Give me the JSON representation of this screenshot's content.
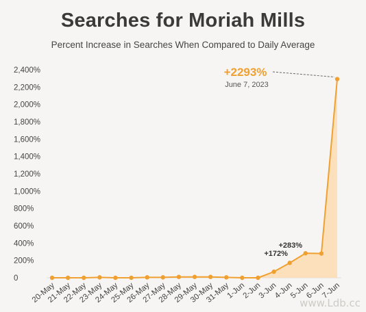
{
  "chart_data": {
    "type": "area",
    "title": "Searches for Moriah Mills",
    "subtitle": "Percent Increase in Searches When Compared to Daily Average",
    "xlabel": "",
    "ylabel": "",
    "ylim": [
      0,
      2400
    ],
    "yticks": [
      "0",
      "200%",
      "400%",
      "600%",
      "800%",
      "1,000%",
      "1,200%",
      "1,400%",
      "1,600%",
      "1,800%",
      "2,000%",
      "2,200%",
      "2,400%"
    ],
    "ytick_values": [
      0,
      200,
      400,
      600,
      800,
      1000,
      1200,
      1400,
      1600,
      1800,
      2000,
      2200,
      2400
    ],
    "categories": [
      "20-May",
      "21-May",
      "22-May",
      "23-May",
      "24-May",
      "25-May",
      "26-May",
      "27-May",
      "28-May",
      "29-May",
      "30-May",
      "31-May",
      "1-Jun",
      "2-Jun",
      "3-Jun",
      "4-Jun",
      "5-Jun",
      "6-Jun",
      "7-Jun"
    ],
    "values": [
      0,
      0,
      0,
      5,
      0,
      0,
      5,
      5,
      10,
      10,
      10,
      5,
      0,
      0,
      70,
      172,
      283,
      280,
      2293
    ],
    "color": "#f0a030",
    "fill_color": "#fbdcb0",
    "grid": false,
    "annotations": [
      {
        "label": "+172%",
        "index": 15
      },
      {
        "label": "+283%",
        "index": 16
      }
    ],
    "callout": {
      "label": "+2293%",
      "date": "June 7, 2023",
      "index": 18
    }
  },
  "watermark": "www.Ldb.cc"
}
